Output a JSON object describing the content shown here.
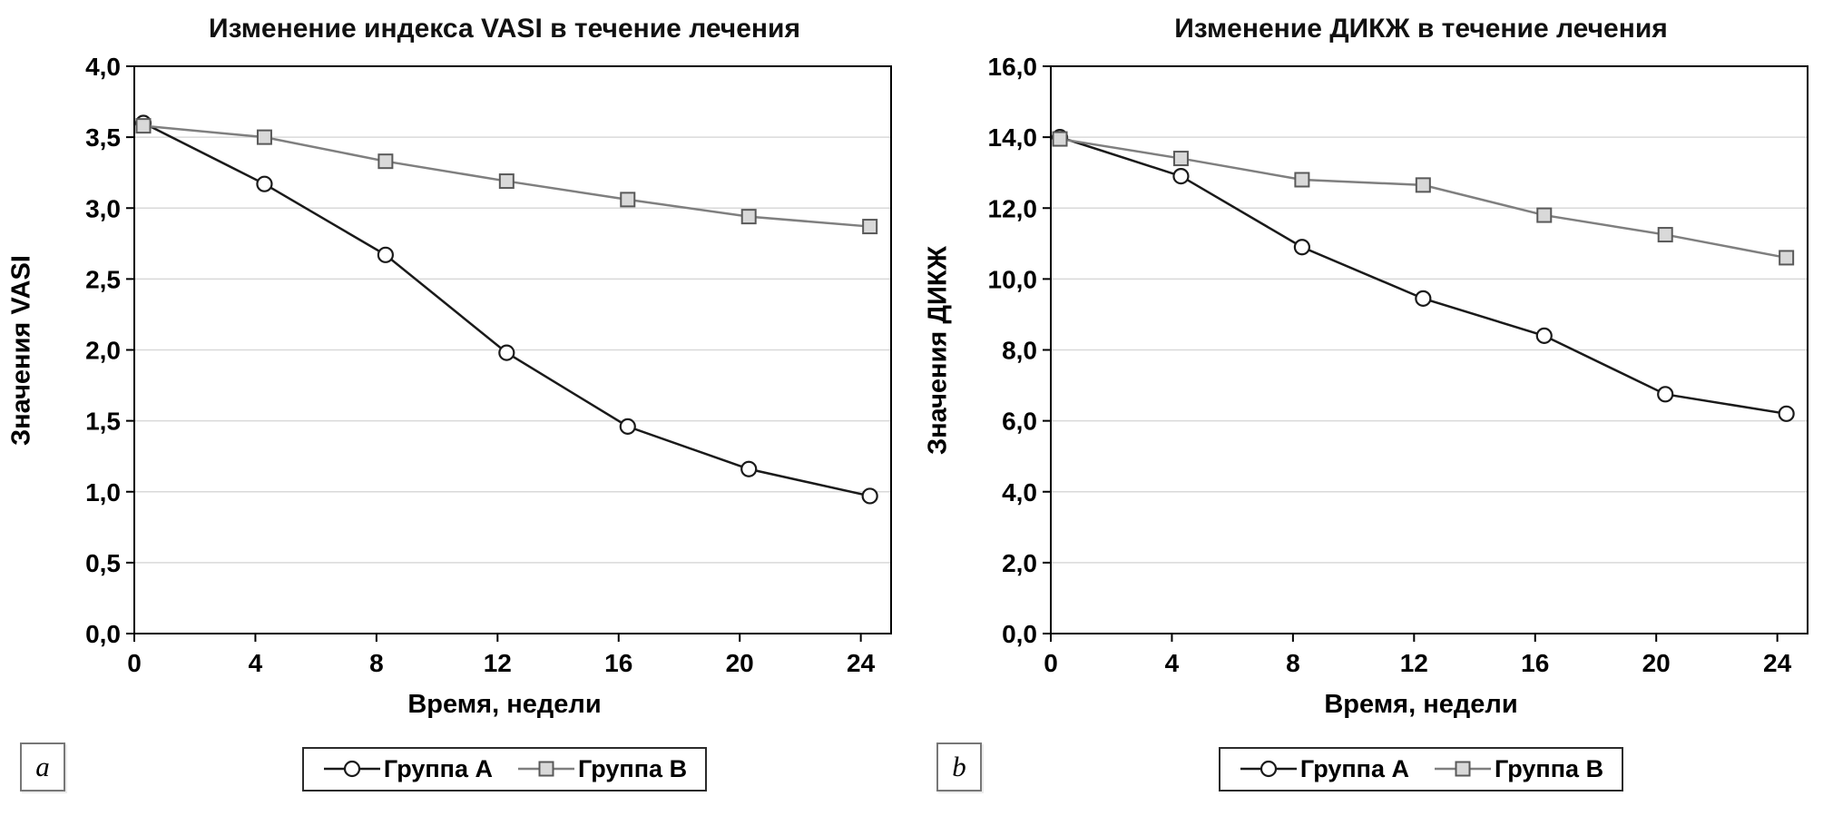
{
  "figure": {
    "background": "#ffffff"
  },
  "colors": {
    "grid": "#d9d9d9",
    "axis": "#000000",
    "group_a_line": "#1a1a1a",
    "group_b_line": "#7f7f7f",
    "background": "#ffffff"
  },
  "chart_data": [
    {
      "type": "line",
      "panel_label": "a",
      "title": "Изменение индекса VASI в течение лечения",
      "xlabel": "Время, недели",
      "ylabel": "Значения VASI",
      "x": [
        0,
        4,
        8,
        12,
        16,
        20,
        24
      ],
      "x_tick_labels": [
        "0",
        "4",
        "8",
        "12",
        "16",
        "20",
        "24"
      ],
      "xlim": [
        0,
        25
      ],
      "ylim": [
        0,
        4
      ],
      "y_ticks": [
        0,
        0.5,
        1,
        1.5,
        2,
        2.5,
        3,
        3.5,
        4
      ],
      "y_tick_labels": [
        "0,0",
        "0,5",
        "1,0",
        "1,5",
        "2,0",
        "2,5",
        "3,0",
        "3,5",
        "4,0"
      ],
      "grid": "horizontal",
      "legend_position": "bottom",
      "series": [
        {
          "name": "Группа А",
          "marker": "circle",
          "line_color": "#1a1a1a",
          "marker_fill": "#ffffff",
          "marker_stroke": "#1a1a1a",
          "values": [
            3.6,
            3.17,
            2.67,
            1.98,
            1.46,
            1.16,
            0.97
          ]
        },
        {
          "name": "Группа В",
          "marker": "square",
          "line_color": "#7f7f7f",
          "marker_fill": "#d9d9d9",
          "marker_stroke": "#595959",
          "values": [
            3.58,
            3.5,
            3.33,
            3.19,
            3.06,
            2.94,
            2.87
          ]
        }
      ]
    },
    {
      "type": "line",
      "panel_label": "b",
      "title": "Изменение ДИКЖ в течение лечения",
      "xlabel": "Время, недели",
      "ylabel": "Значения ДИКЖ",
      "x": [
        0,
        4,
        8,
        12,
        16,
        20,
        24
      ],
      "x_tick_labels": [
        "0",
        "4",
        "8",
        "12",
        "16",
        "20",
        "24"
      ],
      "xlim": [
        0,
        25
      ],
      "ylim": [
        0,
        16
      ],
      "y_ticks": [
        0,
        2,
        4,
        6,
        8,
        10,
        12,
        14,
        16
      ],
      "y_tick_labels": [
        "0,0",
        "2,0",
        "4,0",
        "6,0",
        "8,0",
        "10,0",
        "12,0",
        "14,0",
        "16,0"
      ],
      "grid": "horizontal",
      "legend_position": "bottom",
      "series": [
        {
          "name": "Группа А",
          "marker": "circle",
          "line_color": "#1a1a1a",
          "marker_fill": "#ffffff",
          "marker_stroke": "#1a1a1a",
          "values": [
            14.0,
            12.9,
            10.9,
            9.45,
            8.4,
            6.75,
            6.2
          ]
        },
        {
          "name": "Группа В",
          "marker": "square",
          "line_color": "#7f7f7f",
          "marker_fill": "#d9d9d9",
          "marker_stroke": "#595959",
          "values": [
            13.95,
            13.4,
            12.8,
            12.65,
            11.8,
            11.25,
            10.6
          ]
        }
      ]
    }
  ]
}
